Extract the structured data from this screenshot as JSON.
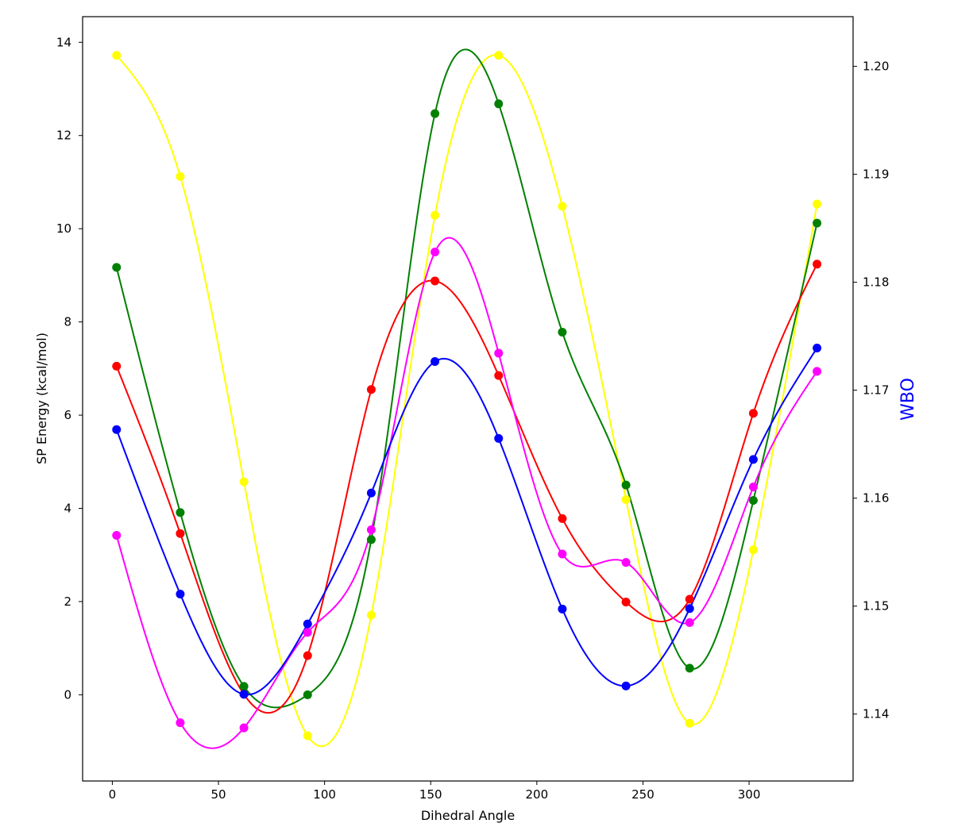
{
  "chart_data": {
    "type": "line",
    "title": "",
    "xlabel": "Dihedral Angle",
    "ylabel": "SP Energy (kcal/mol)",
    "y2label": "WBO",
    "y2label_color": "#0000ff",
    "xlim": [
      -14,
      349
    ],
    "ylim": [
      -1.85,
      14.55
    ],
    "y2lim": [
      1.1338,
      1.2046
    ],
    "xticks": [
      0,
      50,
      100,
      150,
      200,
      250,
      300
    ],
    "yticks": [
      0,
      2,
      4,
      6,
      8,
      10,
      12,
      14
    ],
    "y2ticks": [
      1.14,
      1.15,
      1.16,
      1.17,
      1.18,
      1.19,
      1.2
    ],
    "y2tick_labels": [
      "1.14",
      "1.15",
      "1.16",
      "1.17",
      "1.18",
      "1.19",
      "1.20"
    ],
    "series": [
      {
        "name": "yellow",
        "color": "#ffff00",
        "x": [
          2,
          32,
          62,
          92,
          122,
          152,
          182,
          212,
          242,
          272,
          302,
          332
        ],
        "values": [
          13.72,
          11.12,
          4.57,
          -0.88,
          1.71,
          10.29,
          13.72,
          10.48,
          4.19,
          -0.61,
          3.11,
          10.53
        ]
      },
      {
        "name": "green",
        "color": "#008000",
        "x": [
          2,
          32,
          62,
          92,
          122,
          152,
          182,
          212,
          242,
          272,
          302,
          332
        ],
        "values": [
          9.17,
          3.91,
          0.18,
          0.0,
          3.33,
          12.47,
          12.68,
          7.78,
          4.5,
          0.57,
          4.17,
          10.12
        ]
      },
      {
        "name": "red",
        "color": "#ff0000",
        "x": [
          2,
          32,
          62,
          92,
          122,
          152,
          182,
          212,
          242,
          272,
          302,
          332
        ],
        "values": [
          7.05,
          3.46,
          0.01,
          0.84,
          6.55,
          8.88,
          6.85,
          3.78,
          1.99,
          2.05,
          6.04,
          9.24
        ]
      },
      {
        "name": "magenta",
        "color": "#ff00ff",
        "x": [
          2,
          32,
          62,
          92,
          122,
          152,
          182,
          212,
          242,
          272,
          302,
          332
        ],
        "values": [
          3.42,
          -0.6,
          -0.71,
          1.34,
          3.54,
          9.5,
          7.33,
          3.02,
          2.84,
          1.55,
          4.46,
          6.94
        ]
      },
      {
        "name": "blue",
        "color": "#0000ff",
        "x": [
          2,
          32,
          62,
          92,
          122,
          152,
          182,
          212,
          242,
          272,
          302,
          332
        ],
        "values": [
          5.69,
          2.16,
          0.01,
          1.52,
          4.33,
          7.15,
          5.5,
          1.84,
          0.19,
          1.85,
          5.05,
          7.44
        ]
      }
    ]
  }
}
